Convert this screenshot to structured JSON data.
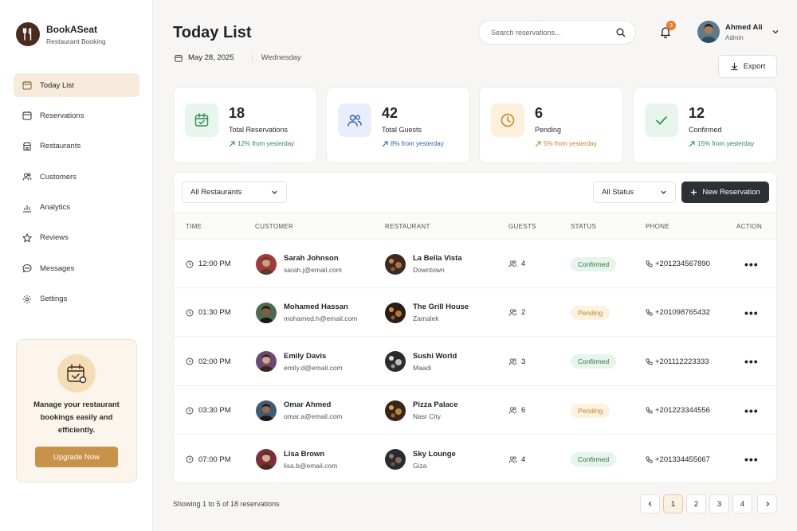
{
  "brand": {
    "name": "BookASeat",
    "subtitle": "Restaurant Booking",
    "icon": "fork-spoon-icon"
  },
  "sidebar": {
    "items": [
      {
        "label": "Today List",
        "icon": "calendar-icon",
        "active": true
      },
      {
        "label": "Reservations",
        "icon": "calendar-outline-icon",
        "active": false
      },
      {
        "label": "Restaurants",
        "icon": "store-icon",
        "active": false
      },
      {
        "label": "Customers",
        "icon": "users-icon",
        "active": false
      },
      {
        "label": "Analytics",
        "icon": "bar-chart-icon",
        "active": false
      },
      {
        "label": "Reviews",
        "icon": "star-icon",
        "active": false
      },
      {
        "label": "Messages",
        "icon": "chat-icon",
        "active": false
      },
      {
        "label": "Settings",
        "icon": "gear-icon",
        "active": false
      }
    ],
    "promo": {
      "text": "Manage your restaurant bookings easily and efficiently.",
      "button": "Upgrade Now"
    }
  },
  "header": {
    "title": "Today List",
    "date": "May 28, 2025",
    "weekday": "Wednesday",
    "search_placeholder": "Search reservations...",
    "notification_count": "3",
    "user": {
      "name": "Ahmed Ali",
      "role": "Admin"
    },
    "export_label": "Export"
  },
  "stats": [
    {
      "value": "18",
      "label": "Total Reservations",
      "trend": "12% from yesterday",
      "icon": "calendar-check-icon",
      "color": "#2e8b57",
      "bg": "#e7f5ec"
    },
    {
      "value": "42",
      "label": "Total Guests",
      "trend": "8% from yesterday",
      "icon": "users-icon",
      "color": "#2f5fb3",
      "bg": "#e8eefb"
    },
    {
      "value": "6",
      "label": "Pending",
      "trend": "5% from yesterday",
      "icon": "clock-icon",
      "color": "#c98222",
      "bg": "#fdf0dc"
    },
    {
      "value": "12",
      "label": "Confirmed",
      "trend": "15% from yesterday",
      "icon": "check-icon",
      "color": "#2e8b57",
      "bg": "#e7f5ec"
    }
  ],
  "filters": {
    "restaurant": "All Restaurants",
    "status": "All Status",
    "new_label": "New Reservation"
  },
  "table": {
    "columns": [
      "TIME",
      "CUSTOMER",
      "RESTAURANT",
      "GUESTS",
      "STATUS",
      "PHONE",
      "ACTION"
    ],
    "rows": [
      {
        "time": "12:00 PM",
        "name": "Sarah Johnson",
        "email": "sarah.j@email.com",
        "restaurant": "La Bella Vista",
        "area": "Downtown",
        "guests": "4",
        "status": "Confirmed",
        "phone": "+201234567890"
      },
      {
        "time": "01:30 PM",
        "name": "Mohamed Hassan",
        "email": "mohamed.h@email.com",
        "restaurant": "The Grill House",
        "area": "Zamalek",
        "guests": "2",
        "status": "Pending",
        "phone": "+201098765432"
      },
      {
        "time": "02:00 PM",
        "name": "Emily Davis",
        "email": "emily.d@email.com",
        "restaurant": "Sushi World",
        "area": "Maadi",
        "guests": "3",
        "status": "Confirmed",
        "phone": "+201112223333"
      },
      {
        "time": "03:30 PM",
        "name": "Omar Ahmed",
        "email": "omar.a@email.com",
        "restaurant": "Pizza Palace",
        "area": "Nasr City",
        "guests": "6",
        "status": "Pending",
        "phone": "+201223344556"
      },
      {
        "time": "07:00 PM",
        "name": "Lisa Brown",
        "email": "lisa.b@email.com",
        "restaurant": "Sky Lounge",
        "area": "Giza",
        "guests": "4",
        "status": "Confirmed",
        "phone": "+201334455667"
      }
    ]
  },
  "footer": {
    "showing": "Showing 1 to 5 of 18 reservations",
    "pages": [
      "1",
      "2",
      "3",
      "4"
    ],
    "current_page": "1"
  }
}
